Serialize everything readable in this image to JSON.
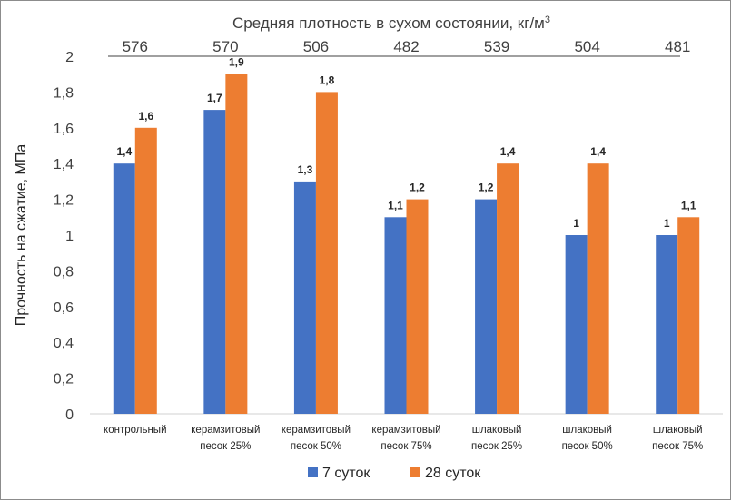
{
  "chart_data": {
    "type": "bar",
    "title": "Средняя плотность в сухом состоянии, кг/м",
    "title_superscript": "3",
    "ylabel": "Прочность на сжатие, МПа",
    "xlabel": "",
    "ylim": [
      0,
      2
    ],
    "yticks": [
      "0",
      "0,2",
      "0,4",
      "0,6",
      "0,8",
      "1",
      "1,2",
      "1,4",
      "1,6",
      "1,8",
      "2"
    ],
    "ytick_values": [
      0,
      0.2,
      0.4,
      0.6,
      0.8,
      1.0,
      1.2,
      1.4,
      1.6,
      1.8,
      2.0
    ],
    "grid": false,
    "legend_position": "bottom",
    "categories": [
      [
        "контрольный"
      ],
      [
        "керамзитовый",
        "песок 25%"
      ],
      [
        "керамзитовый",
        "песок 50%"
      ],
      [
        "керамзитовый",
        "песок 75%"
      ],
      [
        "шлаковый",
        "песок 25%"
      ],
      [
        "шлаковый",
        "песок 50%"
      ],
      [
        "шлаковый",
        "песок 75%"
      ]
    ],
    "density_values": [
      "576",
      "570",
      "506",
      "482",
      "539",
      "504",
      "481"
    ],
    "series": [
      {
        "name": "7 суток",
        "color": "#4472c4",
        "values": [
          1.4,
          1.7,
          1.3,
          1.1,
          1.2,
          1.0,
          1.0
        ],
        "labels": [
          "1,4",
          "1,7",
          "1,3",
          "1,1",
          "1,2",
          "1",
          "1"
        ]
      },
      {
        "name": "28 суток",
        "color": "#ed7d31",
        "values": [
          1.6,
          1.9,
          1.8,
          1.2,
          1.4,
          1.4,
          1.1
        ],
        "labels": [
          "1,6",
          "1,9",
          "1,8",
          "1,2",
          "1,4",
          "1,4",
          "1,1"
        ]
      }
    ]
  }
}
